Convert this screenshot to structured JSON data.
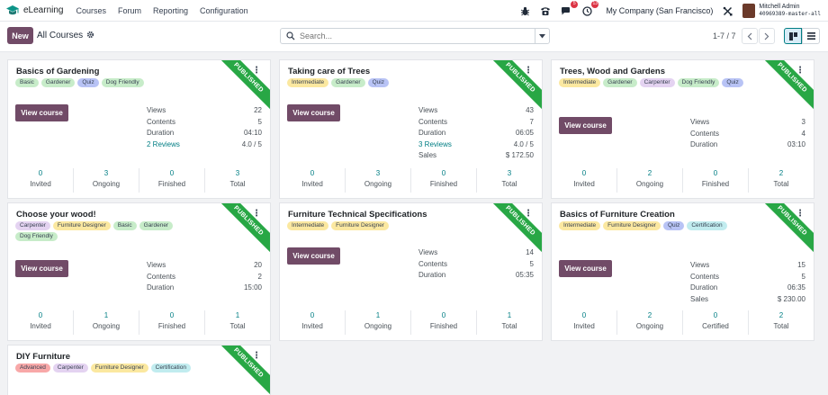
{
  "navbar": {
    "app_name": "eLearning",
    "menu": [
      "Courses",
      "Forum",
      "Reporting",
      "Configuration"
    ],
    "icons": [
      "bug-icon",
      "phone-icon",
      "chat-icon",
      "activity-clock-icon"
    ],
    "chat_badge": "5",
    "activity_badge": "13",
    "company": "My Company (San Francisco)",
    "tools_icon": "tools-icon",
    "user_name": "Mitchell Admin",
    "user_db": "40969389-master-all"
  },
  "control": {
    "new_label": "New",
    "breadcrumb": "All Courses",
    "search_placeholder": "Search...",
    "pager": "1-7 / 7"
  },
  "tag_colors": {
    "Basic": "#c7ecc9",
    "Gardener": "#c7ecc9",
    "Quiz": "#b8c3f5",
    "Dog Friendly": "#c7ecc9",
    "Intermediate": "#fbe8a0",
    "Carpenter": "#e4d3f1",
    "Furniture Designer": "#fbe8a0",
    "Certification": "#c1ecef",
    "Advanced": "#f8a8a8"
  },
  "ribbon_label": "PUBLISHED",
  "view_course_label": "View course",
  "courses": [
    {
      "title": "Basics of Gardening",
      "tags": [
        "Basic",
        "Gardener",
        "Quiz",
        "Dog Friendly"
      ],
      "stats": [
        {
          "label": "Views",
          "value": "22"
        },
        {
          "label": "Contents",
          "value": "5"
        },
        {
          "label": "Duration",
          "value": "04:10"
        },
        {
          "label": "2 Reviews",
          "value": "4.0 / 5",
          "link": true
        }
      ],
      "counters": [
        {
          "value": "0",
          "label": "Invited"
        },
        {
          "value": "3",
          "label": "Ongoing"
        },
        {
          "value": "0",
          "label": "Finished"
        },
        {
          "value": "3",
          "label": "Total"
        }
      ]
    },
    {
      "title": "Taking care of Trees",
      "tags": [
        "Intermediate",
        "Gardener",
        "Quiz"
      ],
      "stats": [
        {
          "label": "Views",
          "value": "43"
        },
        {
          "label": "Contents",
          "value": "7"
        },
        {
          "label": "Duration",
          "value": "06:05"
        },
        {
          "label": "3 Reviews",
          "value": "4.0 / 5",
          "link": true
        },
        {
          "label": "Sales",
          "value": "$ 172.50"
        }
      ],
      "counters": [
        {
          "value": "0",
          "label": "Invited"
        },
        {
          "value": "3",
          "label": "Ongoing"
        },
        {
          "value": "0",
          "label": "Finished"
        },
        {
          "value": "3",
          "label": "Total"
        }
      ]
    },
    {
      "title": "Trees, Wood and Gardens",
      "tags": [
        "Intermediate",
        "Gardener",
        "Carpenter",
        "Dog Friendly",
        "Quiz"
      ],
      "stats": [
        {
          "label": "Views",
          "value": "3"
        },
        {
          "label": "Contents",
          "value": "4"
        },
        {
          "label": "Duration",
          "value": "03:10"
        }
      ],
      "counters": [
        {
          "value": "0",
          "label": "Invited"
        },
        {
          "value": "2",
          "label": "Ongoing"
        },
        {
          "value": "0",
          "label": "Finished"
        },
        {
          "value": "2",
          "label": "Total"
        }
      ]
    },
    {
      "title": "Choose your wood!",
      "tags": [
        "Carpenter",
        "Furniture Designer",
        "Basic",
        "Gardener",
        "Dog Friendly"
      ],
      "stats": [
        {
          "label": "Views",
          "value": "20"
        },
        {
          "label": "Contents",
          "value": "2"
        },
        {
          "label": "Duration",
          "value": "15:00"
        }
      ],
      "counters": [
        {
          "value": "0",
          "label": "Invited"
        },
        {
          "value": "1",
          "label": "Ongoing"
        },
        {
          "value": "0",
          "label": "Finished"
        },
        {
          "value": "1",
          "label": "Total"
        }
      ]
    },
    {
      "title": "Furniture Technical Specifications",
      "tags": [
        "Intermediate",
        "Furniture Designer"
      ],
      "stats": [
        {
          "label": "Views",
          "value": "14"
        },
        {
          "label": "Contents",
          "value": "5"
        },
        {
          "label": "Duration",
          "value": "05:35"
        }
      ],
      "counters": [
        {
          "value": "0",
          "label": "Invited"
        },
        {
          "value": "1",
          "label": "Ongoing"
        },
        {
          "value": "0",
          "label": "Finished"
        },
        {
          "value": "1",
          "label": "Total"
        }
      ]
    },
    {
      "title": "Basics of Furniture Creation",
      "tags": [
        "Intermediate",
        "Furniture Designer",
        "Quiz",
        "Certification"
      ],
      "stats": [
        {
          "label": "Views",
          "value": "15"
        },
        {
          "label": "Contents",
          "value": "5"
        },
        {
          "label": "Duration",
          "value": "06:35"
        },
        {
          "label": "Sales",
          "value": "$ 230.00"
        }
      ],
      "counters": [
        {
          "value": "0",
          "label": "Invited"
        },
        {
          "value": "2",
          "label": "Ongoing"
        },
        {
          "value": "0",
          "label": "Certified"
        },
        {
          "value": "2",
          "label": "Total"
        }
      ]
    },
    {
      "title": "DIY Furniture",
      "tags": [
        "Advanced",
        "Carpenter",
        "Furniture Designer",
        "Certification"
      ],
      "stats": [],
      "counters": []
    }
  ]
}
